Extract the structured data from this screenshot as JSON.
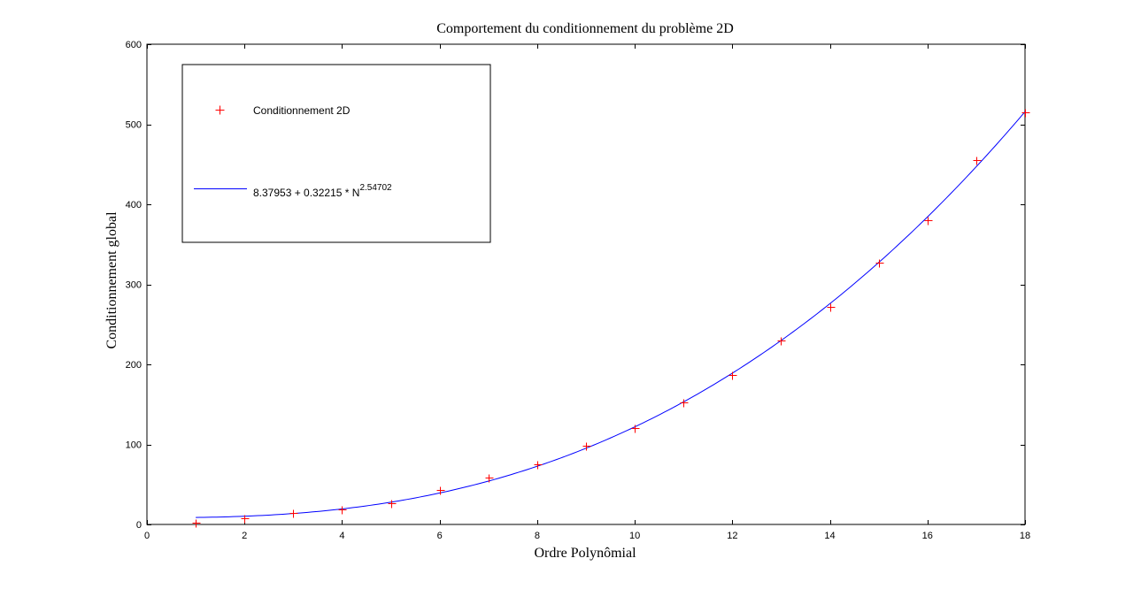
{
  "chart_data": {
    "type": "scatter",
    "title": "Comportement du conditionnement du problème 2D",
    "xlabel": "Ordre Polynômial",
    "ylabel": "Conditionnement global",
    "xlim": [
      0,
      18
    ],
    "ylim": [
      0,
      600
    ],
    "xticks": [
      0,
      2,
      4,
      6,
      8,
      10,
      12,
      14,
      16,
      18
    ],
    "yticks": [
      0,
      100,
      200,
      300,
      400,
      500,
      600
    ],
    "grid": false,
    "legend_position": "top-left",
    "series": [
      {
        "name": "Conditionnement 2D",
        "kind": "markers",
        "marker": "+",
        "color": "#ff0000",
        "x": [
          1,
          2,
          3,
          4,
          5,
          6,
          7,
          8,
          9,
          10,
          11,
          12,
          13,
          14,
          15,
          16,
          17,
          18
        ],
        "y": [
          2,
          8,
          14,
          19,
          26,
          43,
          59,
          75,
          98,
          120,
          152,
          187,
          230,
          272,
          327,
          380,
          455,
          515
        ]
      },
      {
        "legend_main": "8.37953 + 0.32215 * N",
        "legend_sup": "2.54702",
        "kind": "line",
        "color": "#0000ff",
        "model": {
          "a": 8.37953,
          "b": 0.32215,
          "c": 2.54702
        },
        "x_range": [
          1,
          18
        ]
      }
    ]
  }
}
